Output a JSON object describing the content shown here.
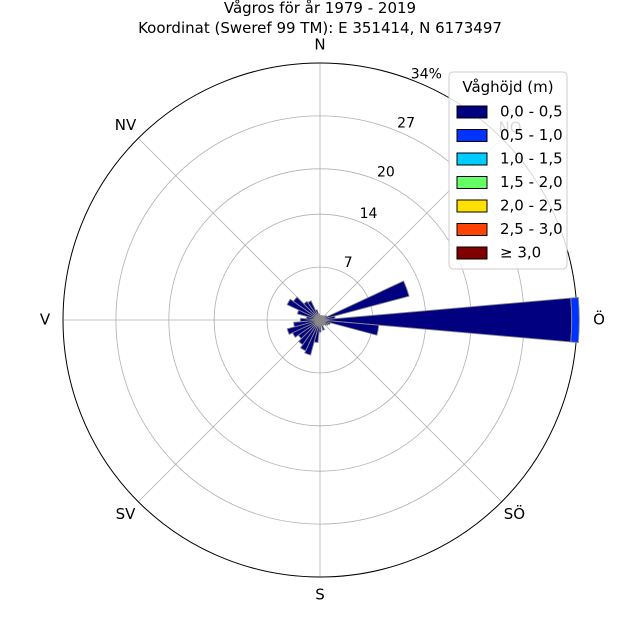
{
  "chart_data": {
    "type": "polar-bar",
    "title": "Vågros för år 1979 - 2019",
    "subtitle": "Koordinat (Sweref 99 TM): E 351414, N 6173497",
    "directions": [
      "N",
      "NV",
      "V",
      "SV",
      "S",
      "SÖ",
      "Ö",
      "NO"
    ],
    "rmax": 34,
    "rings": [
      7,
      14,
      20,
      27,
      34
    ],
    "ring_labels": [
      "7",
      "14",
      "20",
      "27",
      "34%"
    ],
    "legend": {
      "title": "Våghöjd (m)",
      "placement": "top-right",
      "entries": [
        {
          "label": "0,0 - 0,5",
          "color": "#000080"
        },
        {
          "label": "0,5 - 1,0",
          "color": "#0033ff"
        },
        {
          "label": "1,0 - 1,5",
          "color": "#00ccff"
        },
        {
          "label": "1,5 - 2,0",
          "color": "#66ff66"
        },
        {
          "label": "2,0 - 2,5",
          "color": "#ffe000"
        },
        {
          "label": "2,5 - 3,0",
          "color": "#ff4400"
        },
        {
          "label": "≥ 3,0",
          "color": "#800000"
        }
      ]
    },
    "bins": [
      {
        "dir": 0,
        "values": [
          0.6
        ]
      },
      {
        "dir": 10,
        "values": [
          0.5
        ]
      },
      {
        "dir": 20,
        "values": [
          0.6
        ]
      },
      {
        "dir": 30,
        "values": [
          0.6
        ]
      },
      {
        "dir": 40,
        "values": [
          0.7
        ]
      },
      {
        "dir": 50,
        "values": [
          0.7
        ]
      },
      {
        "dir": 60,
        "values": [
          1.0
        ]
      },
      {
        "dir": 70,
        "values": [
          12.2
        ]
      },
      {
        "dir": 80,
        "values": [
          2.0
        ]
      },
      {
        "dir": 90,
        "values": [
          33.3,
          1.0
        ]
      },
      {
        "dir": 100,
        "values": [
          7.8
        ]
      },
      {
        "dir": 110,
        "values": [
          1.4
        ]
      },
      {
        "dir": 120,
        "values": [
          1.2
        ]
      },
      {
        "dir": 130,
        "values": [
          1.0
        ]
      },
      {
        "dir": 140,
        "values": [
          0.8
        ]
      },
      {
        "dir": 150,
        "values": [
          0.8
        ]
      },
      {
        "dir": 160,
        "values": [
          1.4
        ]
      },
      {
        "dir": 170,
        "values": [
          0.8
        ]
      },
      {
        "dir": 180,
        "values": [
          1.6
        ]
      },
      {
        "dir": 190,
        "values": [
          3.0
        ]
      },
      {
        "dir": 200,
        "values": [
          4.8
        ]
      },
      {
        "dir": 210,
        "values": [
          4.5
        ]
      },
      {
        "dir": 220,
        "values": [
          4.0
        ]
      },
      {
        "dir": 230,
        "values": [
          3.5
        ]
      },
      {
        "dir": 240,
        "values": [
          4.0
        ]
      },
      {
        "dir": 250,
        "values": [
          4.5
        ]
      },
      {
        "dir": 260,
        "values": [
          3.5
        ]
      },
      {
        "dir": 270,
        "values": [
          2.6
        ]
      },
      {
        "dir": 280,
        "values": [
          1.8
        ]
      },
      {
        "dir": 290,
        "values": [
          3.1
        ]
      },
      {
        "dir": 300,
        "values": [
          4.8
        ]
      },
      {
        "dir": 310,
        "values": [
          4.3
        ]
      },
      {
        "dir": 320,
        "values": [
          3.0
        ]
      },
      {
        "dir": 330,
        "values": [
          2.8
        ]
      },
      {
        "dir": 340,
        "values": [
          1.4
        ]
      },
      {
        "dir": 350,
        "values": [
          0.8
        ]
      }
    ]
  }
}
